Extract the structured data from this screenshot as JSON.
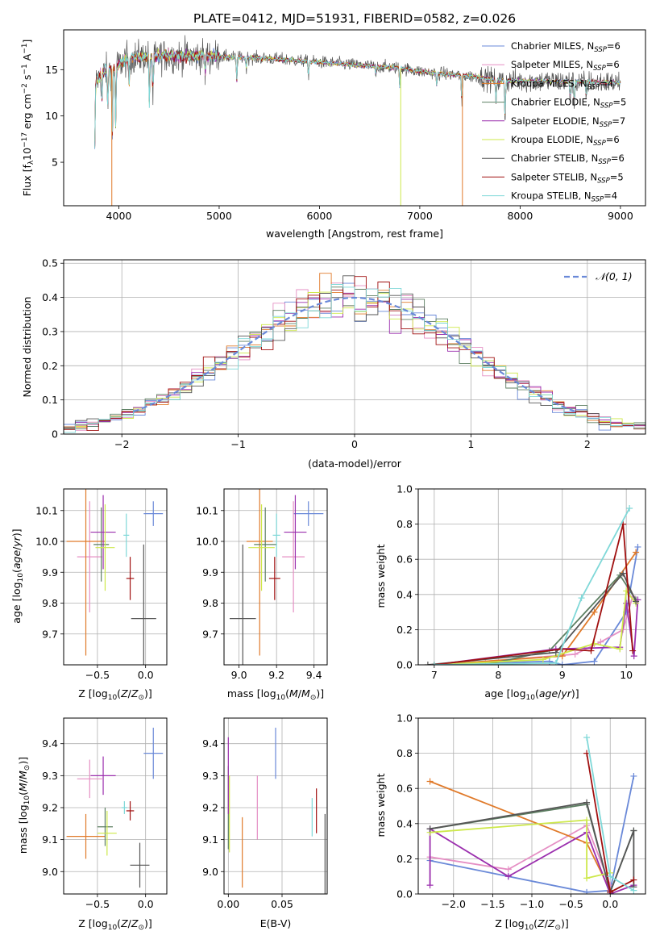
{
  "title": "PLATE=0412, MJD=51931, FIBERID=0582, z=0.026",
  "colors": [
    "#6a89d8",
    "#e58fc4",
    "#e07a2a",
    "#5d7f62",
    "#9b2fae",
    "#cde84a",
    "#555555",
    "#a01010",
    "#7fd8d8"
  ],
  "chart_data": [
    {
      "id": "spectrum",
      "type": "line",
      "xlabel": "wavelength [Angstrom, rest frame]",
      "ylabel": "Flux [f_λ 10^-17 erg cm^-2 s^-1 A^-1]",
      "xlim": [
        3450,
        9250
      ],
      "ylim": [
        0.3,
        19.3
      ],
      "xticks": [
        4000,
        5000,
        6000,
        7000,
        8000,
        9000
      ],
      "yticks": [
        5,
        10,
        15
      ],
      "grid": false,
      "legend": "upper right",
      "series": [
        {
          "name": "Chabrier MILES, N_SSP=6",
          "label_main": "Chabrier MILES, N",
          "label_sub": "SSP",
          "label_tail": "=6"
        },
        {
          "name": "Salpeter MILES, N_SSP=6",
          "label_main": "Salpeter MILES, N",
          "label_sub": "SSP",
          "label_tail": "=6"
        },
        {
          "name": "Kroupa MILES, N_SSP=4",
          "label_main": "Kroupa MILES, N",
          "label_sub": "SSP",
          "label_tail": "=4"
        },
        {
          "name": "Chabrier ELODIE, N_SSP=5",
          "label_main": "Chabrier ELODIE, N",
          "label_sub": "SSP",
          "label_tail": "=5"
        },
        {
          "name": "Salpeter ELODIE, N_SSP=7",
          "label_main": "Salpeter ELODIE, N",
          "label_sub": "SSP",
          "label_tail": "=7"
        },
        {
          "name": "Kroupa ELODIE, N_SSP=6",
          "label_main": "Kroupa ELODIE, N",
          "label_sub": "SSP",
          "label_tail": "=6"
        },
        {
          "name": "Chabrier STELIB, N_SSP=6",
          "label_main": "Chabrier STELIB, N",
          "label_sub": "SSP",
          "label_tail": "=6"
        },
        {
          "name": "Salpeter STELIB, N_SSP=5",
          "label_main": "Salpeter STELIB, N",
          "label_sub": "SSP",
          "label_tail": "=5"
        },
        {
          "name": "Kroupa STELIB, N_SSP=4",
          "label_main": "Kroupa STELIB, N",
          "label_sub": "SSP",
          "label_tail": "=4"
        }
      ],
      "continuum": [
        [
          3750,
          13.5
        ],
        [
          3850,
          14.8
        ],
        [
          3950,
          15.2
        ],
        [
          4100,
          16.3
        ],
        [
          4300,
          16.4
        ],
        [
          4500,
          16.5
        ],
        [
          4800,
          16.5
        ],
        [
          5000,
          16.4
        ],
        [
          5500,
          16.2
        ],
        [
          6000,
          15.8
        ],
        [
          6500,
          15.4
        ],
        [
          6800,
          15.2
        ],
        [
          7000,
          14.8
        ],
        [
          7200,
          14.6
        ],
        [
          7400,
          14.4
        ],
        [
          7600,
          14.2
        ],
        [
          7800,
          13.8
        ],
        [
          8000,
          13.8
        ],
        [
          8500,
          13.7
        ],
        [
          9000,
          13.6
        ]
      ],
      "features": [
        [
          3760,
          -7.0
        ],
        [
          3830,
          -3.0
        ],
        [
          3890,
          -4.0
        ],
        [
          3934,
          -8.0
        ],
        [
          3968,
          -6.5
        ],
        [
          4102,
          -3.0
        ],
        [
          4305,
          -5.0
        ],
        [
          4340,
          -4.5
        ],
        [
          4861,
          -2.0
        ],
        [
          5175,
          -2.5
        ],
        [
          5270,
          -1.2
        ],
        [
          5890,
          -1.5
        ],
        [
          6563,
          -1.0
        ],
        [
          6800,
          -2.0
        ],
        [
          7170,
          -1.5
        ],
        [
          7420,
          -3.5
        ],
        [
          7760,
          -2.5
        ],
        [
          7850,
          -4.0
        ],
        [
          8500,
          -2.0
        ],
        [
          8540,
          -2.5
        ],
        [
          8660,
          -2.0
        ]
      ],
      "spikes": [
        {
          "series": 2,
          "x": 3930,
          "y": 0.3
        },
        {
          "series": 5,
          "x": 6810,
          "y": 0.3
        },
        {
          "series": 2,
          "x": 7425,
          "y": 0.3
        }
      ]
    },
    {
      "id": "residuals",
      "type": "histogram",
      "xlabel": "(data-model)/error",
      "ylabel": "Normed distribution",
      "xlim": [
        -2.5,
        2.5
      ],
      "ylim": [
        0,
        0.51
      ],
      "xticks": [
        -2,
        -1,
        0,
        1,
        2
      ],
      "yticks": [
        0.0,
        0.1,
        0.2,
        0.3,
        0.4,
        0.5
      ],
      "grid": true,
      "bin_width": 0.1,
      "reference": {
        "name": "N(0,1)",
        "label": "𝒩(0, 1)",
        "mean": 0,
        "sigma": 1,
        "style": "dashed"
      },
      "legend": "upper right"
    },
    {
      "id": "age-vs-Z",
      "type": "scatter",
      "xlabel": "Z [log10(Z/Z⊙)]",
      "ylabel": "age [log10(age/yr)]",
      "xlim": [
        -0.85,
        0.22
      ],
      "ylim": [
        9.6,
        10.17
      ],
      "xticks": [
        -0.5,
        0.0
      ],
      "yticks": [
        9.7,
        9.8,
        9.9,
        10.0,
        10.1
      ],
      "grid": true,
      "points": [
        {
          "series": 0,
          "x": 0.08,
          "xerr": 0.1,
          "y": 10.09,
          "yerr": 0.04
        },
        {
          "series": 1,
          "x": -0.58,
          "xerr": 0.13,
          "y": 9.95,
          "yerr": 0.18
        },
        {
          "series": 2,
          "x": -0.62,
          "xerr": 0.2,
          "y": 10.0,
          "yerr": 0.37
        },
        {
          "series": 3,
          "x": -0.46,
          "xerr": 0.08,
          "y": 9.99,
          "yerr": 0.12
        },
        {
          "series": 4,
          "x": -0.44,
          "xerr": 0.13,
          "y": 10.03,
          "yerr": 0.12
        },
        {
          "series": 5,
          "x": -0.42,
          "xerr": 0.1,
          "y": 9.98,
          "yerr": 0.14
        },
        {
          "series": 6,
          "x": -0.02,
          "xerr": 0.13,
          "y": 9.75,
          "yerr": 0.24
        },
        {
          "series": 7,
          "x": -0.16,
          "xerr": 0.04,
          "y": 9.88,
          "yerr": 0.07
        },
        {
          "series": 8,
          "x": -0.2,
          "xerr": 0.03,
          "y": 10.02,
          "yerr": 0.07
        }
      ]
    },
    {
      "id": "age-vs-mass",
      "type": "scatter",
      "xlabel": "mass [log10(M/M⊙)]",
      "ylabel": "",
      "xlim": [
        8.92,
        9.47
      ],
      "ylim": [
        9.6,
        10.17
      ],
      "xticks": [
        9.0,
        9.2,
        9.4
      ],
      "yticks": [
        9.7,
        9.8,
        9.9,
        10.0,
        10.1
      ],
      "grid": true,
      "points": [
        {
          "series": 0,
          "x": 9.37,
          "xerr": 0.08,
          "y": 10.09,
          "yerr": 0.04
        },
        {
          "series": 1,
          "x": 9.29,
          "xerr": 0.06,
          "y": 9.95,
          "yerr": 0.18
        },
        {
          "series": 2,
          "x": 9.11,
          "xerr": 0.07,
          "y": 10.0,
          "yerr": 0.37
        },
        {
          "series": 3,
          "x": 9.14,
          "xerr": 0.06,
          "y": 9.99,
          "yerr": 0.12
        },
        {
          "series": 4,
          "x": 9.3,
          "xerr": 0.06,
          "y": 10.03,
          "yerr": 0.12
        },
        {
          "series": 5,
          "x": 9.12,
          "xerr": 0.07,
          "y": 9.98,
          "yerr": 0.14
        },
        {
          "series": 6,
          "x": 9.02,
          "xerr": 0.07,
          "y": 9.75,
          "yerr": 0.24
        },
        {
          "series": 7,
          "x": 9.19,
          "xerr": 0.03,
          "y": 9.88,
          "yerr": 0.07
        },
        {
          "series": 8,
          "x": 9.2,
          "xerr": 0.02,
          "y": 10.02,
          "yerr": 0.07
        }
      ]
    },
    {
      "id": "weight-vs-age",
      "type": "line",
      "xlabel": "age [log10(age/yr)]",
      "ylabel": "mass weight",
      "xlim": [
        6.75,
        10.3
      ],
      "ylim": [
        0.0,
        1.0
      ],
      "xticks": [
        7,
        8,
        9,
        10
      ],
      "yticks": [
        0.0,
        0.2,
        0.4,
        0.6,
        0.8,
        1.0
      ],
      "grid": true,
      "series": [
        {
          "index": 0,
          "points": [
            [
              7.0,
              0.0
            ],
            [
              8.8,
              0.02
            ],
            [
              9.0,
              0.0
            ],
            [
              9.5,
              0.02
            ],
            [
              10.0,
              0.3
            ],
            [
              10.18,
              0.67
            ]
          ]
        },
        {
          "index": 1,
          "points": [
            [
              7.0,
              0.0
            ],
            [
              7.8,
              0.02
            ],
            [
              9.2,
              0.06
            ],
            [
              9.6,
              0.13
            ],
            [
              9.95,
              0.2
            ],
            [
              10.1,
              0.39
            ]
          ]
        },
        {
          "index": 2,
          "points": [
            [
              7.0,
              0.0
            ],
            [
              9.0,
              0.05
            ],
            [
              9.5,
              0.3
            ],
            [
              10.15,
              0.64
            ]
          ]
        },
        {
          "index": 3,
          "points": [
            [
              7.8,
              0.0
            ],
            [
              8.8,
              0.08
            ],
            [
              9.9,
              0.51
            ],
            [
              10.15,
              0.37
            ]
          ]
        },
        {
          "index": 4,
          "points": [
            [
              7.0,
              0.0
            ],
            [
              8.9,
              0.09
            ],
            [
              9.9,
              0.1
            ],
            [
              10.0,
              0.35
            ],
            [
              10.12,
              0.05
            ],
            [
              10.18,
              0.37
            ]
          ]
        },
        {
          "index": 5,
          "points": [
            [
              7.0,
              0.0
            ],
            [
              8.7,
              0.03
            ],
            [
              9.5,
              0.12
            ],
            [
              9.9,
              0.09
            ],
            [
              10.0,
              0.42
            ],
            [
              10.15,
              0.35
            ]
          ]
        },
        {
          "index": 6,
          "points": [
            [
              6.9,
              0.0
            ],
            [
              8.9,
              0.07
            ],
            [
              9.95,
              0.52
            ],
            [
              10.15,
              0.36
            ]
          ]
        },
        {
          "index": 7,
          "points": [
            [
              7.0,
              0.0
            ],
            [
              9.0,
              0.09
            ],
            [
              9.45,
              0.08
            ],
            [
              9.95,
              0.8
            ],
            [
              10.1,
              0.08
            ]
          ]
        },
        {
          "index": 8,
          "points": [
            [
              7.0,
              0.0
            ],
            [
              8.9,
              0.01
            ],
            [
              9.3,
              0.38
            ],
            [
              10.05,
              0.89
            ]
          ]
        }
      ]
    },
    {
      "id": "mass-vs-Z",
      "type": "scatter",
      "xlabel": "Z [log10(Z/Z⊙)]",
      "ylabel": "mass [log10(M/M⊙)]",
      "xlim": [
        -0.85,
        0.22
      ],
      "ylim": [
        8.93,
        9.48
      ],
      "xticks": [
        -0.5,
        0.0
      ],
      "yticks": [
        9.0,
        9.1,
        9.2,
        9.3,
        9.4
      ],
      "grid": true,
      "points": [
        {
          "series": 0,
          "x": 0.08,
          "xerr": 0.1,
          "y": 9.37,
          "yerr": 0.08
        },
        {
          "series": 1,
          "x": -0.58,
          "xerr": 0.13,
          "y": 9.29,
          "yerr": 0.06
        },
        {
          "series": 2,
          "x": -0.62,
          "xerr": 0.2,
          "y": 9.11,
          "yerr": 0.07
        },
        {
          "series": 3,
          "x": -0.42,
          "xerr": 0.08,
          "y": 9.14,
          "yerr": 0.06
        },
        {
          "series": 4,
          "x": -0.44,
          "xerr": 0.13,
          "y": 9.3,
          "yerr": 0.06
        },
        {
          "series": 5,
          "x": -0.4,
          "xerr": 0.1,
          "y": 9.12,
          "yerr": 0.07
        },
        {
          "series": 6,
          "x": -0.06,
          "xerr": 0.1,
          "y": 9.02,
          "yerr": 0.07
        },
        {
          "series": 7,
          "x": -0.16,
          "xerr": 0.04,
          "y": 9.19,
          "yerr": 0.03
        },
        {
          "series": 8,
          "x": -0.22,
          "xerr": 0.03,
          "y": 9.2,
          "yerr": 0.02
        }
      ]
    },
    {
      "id": "mass-vs-ebv",
      "type": "scatter",
      "xlabel": "E(B-V)",
      "ylabel": "",
      "xlim": [
        -0.004,
        0.092
      ],
      "ylim": [
        8.93,
        9.48
      ],
      "xticks": [
        0.0,
        0.05
      ],
      "yticks": [
        9.0,
        9.1,
        9.2,
        9.3,
        9.4
      ],
      "grid": true,
      "points": [
        {
          "series": 0,
          "x": 0.044,
          "xerr": 0.0,
          "y": 9.37,
          "yerr": 0.08
        },
        {
          "series": 1,
          "x": 0.027,
          "xerr": 0.0,
          "y": 9.2,
          "yerr": 0.1
        },
        {
          "series": 2,
          "x": 0.013,
          "xerr": 0.0,
          "y": 9.06,
          "yerr": 0.11
        },
        {
          "series": 3,
          "x": 0.0,
          "xerr": 0.0,
          "y": 9.2,
          "yerr": 0.13
        },
        {
          "series": 4,
          "x": 0.0,
          "xerr": 0.0,
          "y": 9.3,
          "yerr": 0.12
        },
        {
          "series": 5,
          "x": 0.001,
          "xerr": 0.0,
          "y": 9.18,
          "yerr": 0.12
        },
        {
          "series": 6,
          "x": 0.09,
          "xerr": 0.0,
          "y": 9.03,
          "yerr": 0.15
        },
        {
          "series": 7,
          "x": 0.082,
          "xerr": 0.0,
          "y": 9.19,
          "yerr": 0.07
        },
        {
          "series": 8,
          "x": 0.078,
          "xerr": 0.0,
          "y": 9.17,
          "yerr": 0.06
        }
      ]
    },
    {
      "id": "weight-vs-Z",
      "type": "line",
      "xlabel": "Z [log10(Z/Z⊙)]",
      "ylabel": "mass weight",
      "xlim": [
        -2.45,
        0.45
      ],
      "ylim": [
        0.0,
        1.0
      ],
      "xticks": [
        -2.0,
        -1.5,
        -1.0,
        -0.5,
        0.0
      ],
      "yticks": [
        0.0,
        0.2,
        0.4,
        0.6,
        0.8,
        1.0
      ],
      "grid": true,
      "series": [
        {
          "index": 0,
          "points": [
            [
              -2.3,
              0.19
            ],
            [
              -1.3,
              0.1
            ],
            [
              -0.3,
              0.01
            ],
            [
              0.0,
              0.02
            ],
            [
              0.3,
              0.67
            ]
          ]
        },
        {
          "index": 1,
          "points": [
            [
              -2.3,
              0.21
            ],
            [
              -1.3,
              0.14
            ],
            [
              -0.3,
              0.39
            ],
            [
              0.0,
              0.05
            ]
          ]
        },
        {
          "index": 2,
          "points": [
            [
              -2.3,
              0.64
            ],
            [
              -0.3,
              0.29
            ],
            [
              0.0,
              0.02
            ]
          ]
        },
        {
          "index": 3,
          "points": [
            [
              -2.3,
              0.37
            ],
            [
              -0.3,
              0.51
            ],
            [
              0.0,
              0.01
            ],
            [
              0.3,
              0.36
            ]
          ]
        },
        {
          "index": 4,
          "points": [
            [
              -2.3,
              0.05
            ],
            [
              -2.3,
              0.37
            ],
            [
              -1.3,
              0.1
            ],
            [
              -0.3,
              0.35
            ],
            [
              0.0,
              0.0
            ],
            [
              0.3,
              0.05
            ]
          ]
        },
        {
          "index": 5,
          "points": [
            [
              -2.3,
              0.35
            ],
            [
              -0.3,
              0.42
            ],
            [
              -0.3,
              0.09
            ],
            [
              0.0,
              0.12
            ]
          ]
        },
        {
          "index": 6,
          "points": [
            [
              -2.3,
              0.37
            ],
            [
              -0.3,
              0.52
            ],
            [
              0.0,
              0.01
            ],
            [
              0.3,
              0.36
            ],
            [
              0.3,
              0.04
            ]
          ]
        },
        {
          "index": 7,
          "points": [
            [
              -0.3,
              0.8
            ],
            [
              0.0,
              0.01
            ],
            [
              0.3,
              0.08
            ]
          ]
        },
        {
          "index": 8,
          "points": [
            [
              -0.3,
              0.89
            ],
            [
              0.0,
              0.1
            ],
            [
              0.3,
              0.02
            ]
          ]
        }
      ]
    }
  ]
}
